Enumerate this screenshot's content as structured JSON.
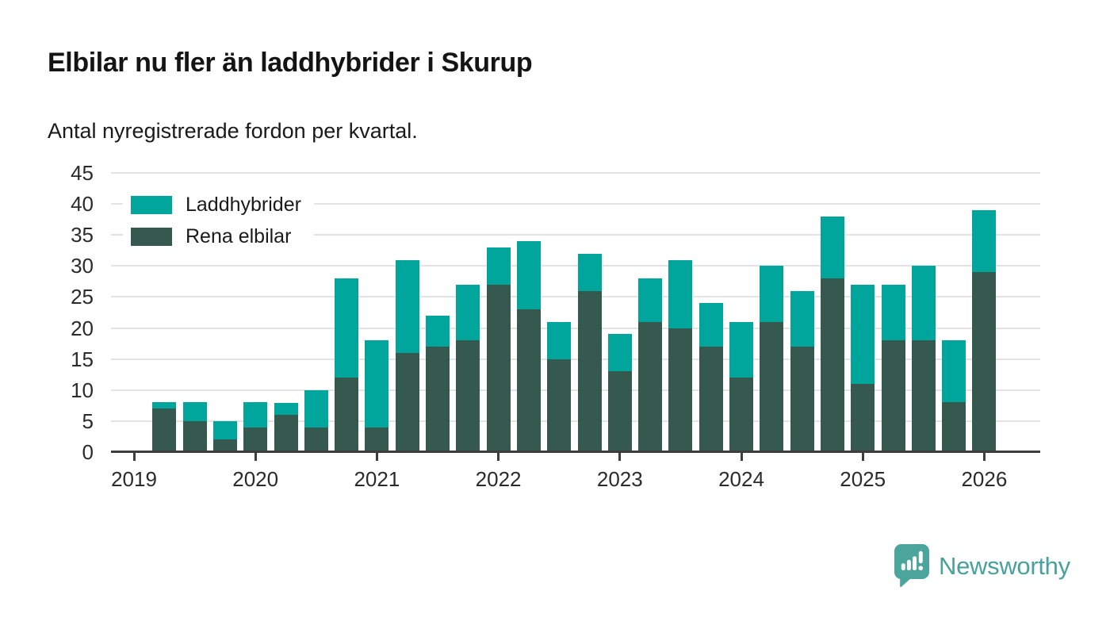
{
  "title": "Elbilar nu fler än laddhybrider i Skurup",
  "subtitle": "Antal nyregistrerade fordon per kvartal.",
  "legend": {
    "items": [
      {
        "label": "Laddhybrider",
        "color": "#00a69b"
      },
      {
        "label": "Rena elbilar",
        "color": "#35594f"
      }
    ]
  },
  "footer": {
    "brand": "Newsworthy",
    "logo_icon": "newsworthy-speech-bubble-barchart-icon",
    "brand_color": "#46a29a"
  },
  "chart_data": {
    "type": "bar",
    "stacked": true,
    "title": "Elbilar nu fler än laddhybrider i Skurup",
    "subtitle": "Antal nyregistrerade fordon per kvartal.",
    "xlabel": "",
    "ylabel": "",
    "categories": [
      "2019Q2",
      "2019Q3",
      "2019Q4",
      "2020Q1",
      "2020Q2",
      "2020Q3",
      "2020Q4",
      "2021Q1",
      "2021Q2",
      "2021Q3",
      "2021Q4",
      "2022Q1",
      "2022Q2",
      "2022Q3",
      "2022Q4",
      "2023Q1",
      "2023Q2",
      "2023Q3",
      "2023Q4",
      "2024Q1",
      "2024Q2",
      "2024Q3",
      "2024Q4",
      "2025Q1",
      "2025Q2",
      "2025Q3",
      "2025Q4",
      "2026Q1"
    ],
    "series": [
      {
        "name": "Rena elbilar",
        "color": "#35594f",
        "stack_order": "bottom",
        "values": [
          7,
          5,
          2,
          4,
          6,
          4,
          12,
          4,
          16,
          17,
          18,
          27,
          23,
          15,
          26,
          13,
          21,
          20,
          17,
          12,
          21,
          17,
          28,
          11,
          18,
          18,
          8,
          29
        ]
      },
      {
        "name": "Laddhybrider",
        "color": "#00a69b",
        "stack_order": "top",
        "values": [
          1,
          3,
          3,
          4,
          2,
          6,
          16,
          14,
          15,
          5,
          9,
          6,
          11,
          6,
          6,
          6,
          7,
          11,
          7,
          9,
          9,
          9,
          10,
          16,
          9,
          12,
          10,
          10
        ]
      }
    ],
    "totals": [
      8,
      8,
      5,
      8,
      8,
      10,
      28,
      18,
      31,
      22,
      27,
      33,
      34,
      21,
      32,
      19,
      28,
      31,
      24,
      21,
      30,
      26,
      38,
      27,
      27,
      30,
      18,
      39
    ],
    "yticks": [
      0,
      5,
      10,
      15,
      20,
      25,
      30,
      35,
      40,
      45
    ],
    "ylim": [
      0,
      45
    ],
    "xticks": [
      2019,
      2020,
      2021,
      2022,
      2023,
      2024,
      2025,
      2026
    ],
    "grid": true,
    "gridline_color": "#e3e3e3",
    "legend_position": "upper-left"
  }
}
